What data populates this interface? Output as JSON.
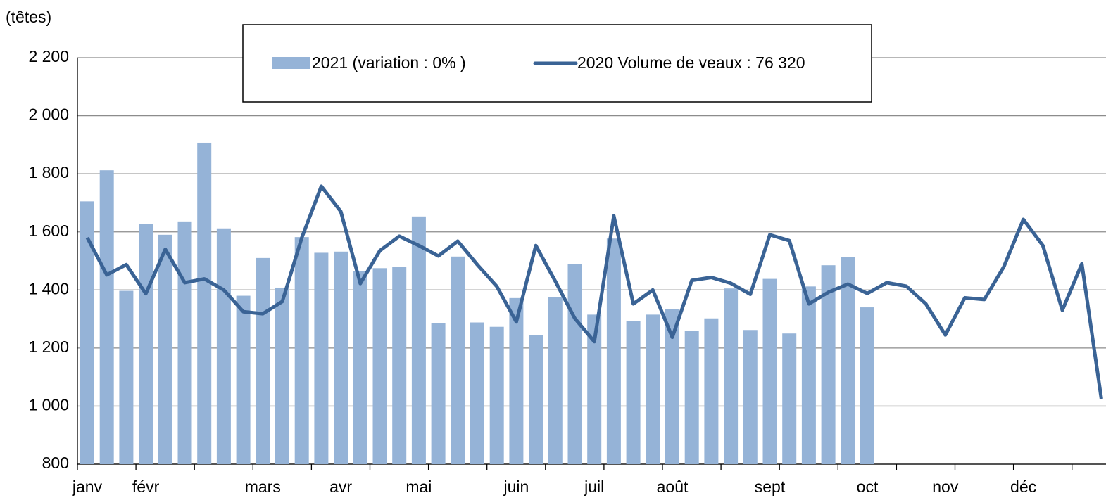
{
  "chart_data": {
    "type": "bar_line",
    "y_label": "(têtes)",
    "categories": [
      "janv",
      null,
      null,
      "févr",
      null,
      null,
      null,
      null,
      null,
      "mars",
      null,
      null,
      null,
      "avr",
      null,
      null,
      null,
      "mai",
      null,
      null,
      null,
      null,
      "juin",
      null,
      null,
      null,
      "juil",
      null,
      null,
      null,
      "août",
      null,
      null,
      null,
      null,
      "sept",
      null,
      null,
      null,
      null,
      "oct",
      null,
      null,
      null,
      "nov",
      null,
      null,
      null,
      "déc",
      null,
      null,
      null,
      null
    ],
    "series": [
      {
        "name": "2021 (variation : 0% )",
        "kind": "bar",
        "color": "#95b3d7",
        "values": [
          1705,
          1812,
          1397,
          1627,
          1590,
          1636,
          1907,
          1612,
          1380,
          1510,
          1408,
          1582,
          1528,
          1532,
          1465,
          1475,
          1480,
          1653,
          1285,
          1515,
          1288,
          1273,
          1372,
          1245,
          1375,
          1490,
          1315,
          1577,
          1292,
          1315,
          1335,
          1258,
          1302,
          1405,
          1262,
          1438,
          1250,
          1412,
          1485,
          1513,
          1340,
          null,
          null,
          null,
          null,
          null,
          null,
          null,
          null,
          null,
          null,
          null,
          null
        ]
      },
      {
        "name": "2020 Volume de veaux : 76 320",
        "kind": "line",
        "color": "#3a6395",
        "values": [
          1580,
          1452,
          1487,
          1387,
          1540,
          1425,
          1438,
          1400,
          1325,
          1318,
          1360,
          1580,
          1757,
          1670,
          1422,
          1535,
          1585,
          1553,
          1517,
          1568,
          1487,
          1412,
          1290,
          1553,
          1430,
          1302,
          1222,
          1655,
          1352,
          1400,
          1237,
          1433,
          1443,
          1423,
          1385,
          1590,
          1570,
          1352,
          1392,
          1420,
          1388,
          1425,
          1413,
          1352,
          1245,
          1373,
          1367,
          1480,
          1643,
          1553,
          1330,
          1490,
          1025
        ]
      }
    ],
    "ylim": [
      800,
      2200
    ],
    "yticks": [
      {
        "value": 800,
        "label": "800"
      },
      {
        "value": 1000,
        "label": "1 000"
      },
      {
        "value": 1200,
        "label": "1 200"
      },
      {
        "value": 1400,
        "label": "1 400"
      },
      {
        "value": 1600,
        "label": "1 600"
      },
      {
        "value": 1800,
        "label": "1 800"
      },
      {
        "value": 2000,
        "label": "2 000"
      },
      {
        "value": 2200,
        "label": "2 200"
      }
    ],
    "grid": true
  }
}
